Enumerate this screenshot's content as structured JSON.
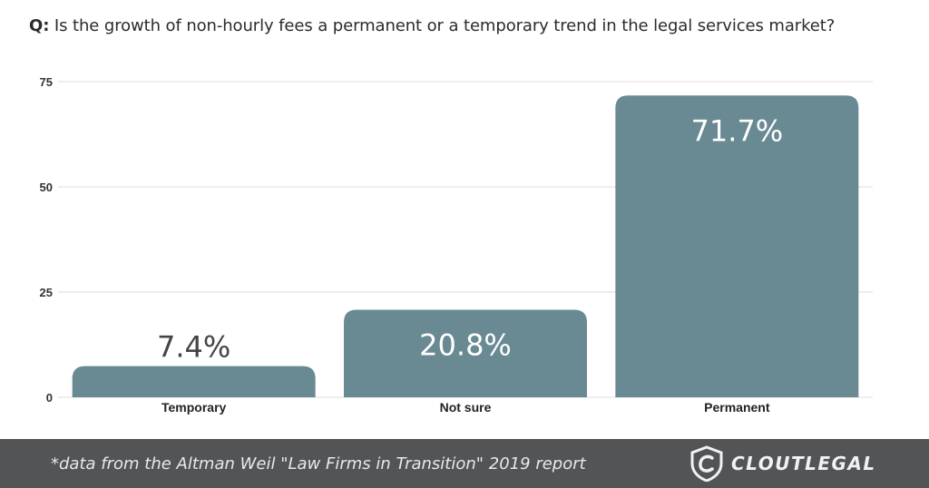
{
  "question": {
    "prefix": "Q:",
    "text": " Is the growth of non-hourly fees a permanent or a temporary trend in the legal services market?"
  },
  "chart_data": {
    "type": "bar",
    "categories": [
      "Temporary",
      "Not sure",
      "Permanent"
    ],
    "values": [
      7.4,
      20.8,
      71.7
    ],
    "data_labels": [
      "7.4%",
      "20.8%",
      "71.7%"
    ],
    "ylim": [
      0,
      75
    ],
    "yticks": [
      0,
      25,
      50,
      75
    ],
    "grid": true,
    "bar_color": "#6a8a93",
    "title": "",
    "xlabel": "",
    "ylabel": ""
  },
  "footer": {
    "source": "*data from the Altman Weil \"Law Firms in Transition\" 2019 report",
    "logo_text": "CLOUTLEGAL",
    "logo_icon": "shield-icon"
  }
}
